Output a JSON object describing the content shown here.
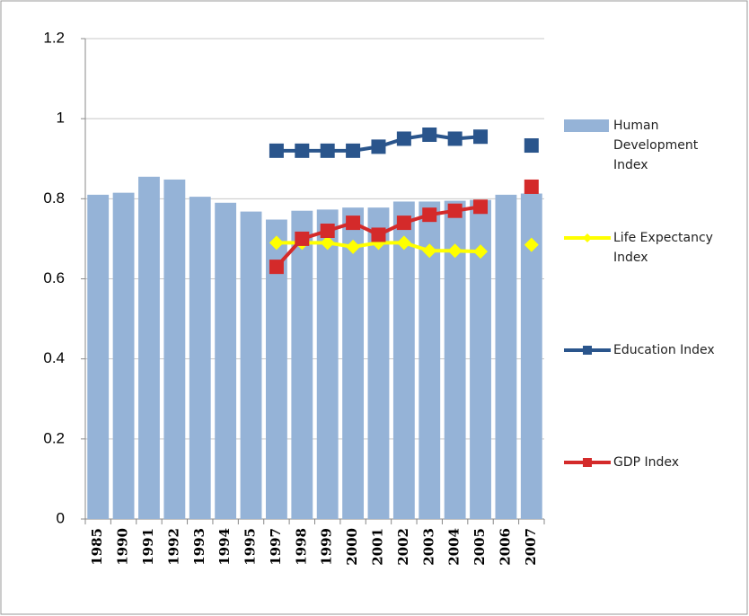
{
  "chart_data": {
    "type": "bar",
    "categories": [
      "1985",
      "1990",
      "1991",
      "1992",
      "1993",
      "1994",
      "1995",
      "1997",
      "1998",
      "1999",
      "2000",
      "2001",
      "2002",
      "2003",
      "2004",
      "2005",
      "2006",
      "2007"
    ],
    "series": [
      {
        "name": "Human Development Index",
        "type": "bar",
        "color": "#95b3d7",
        "values": [
          0.81,
          0.815,
          0.855,
          0.848,
          0.805,
          0.79,
          0.768,
          0.748,
          0.77,
          0.773,
          0.778,
          0.778,
          0.793,
          0.793,
          0.795,
          0.797,
          0.81,
          0.813
        ]
      },
      {
        "name": "Life Expectancy Index",
        "type": "line",
        "marker": "diamond",
        "color": "#ffff00",
        "values": [
          null,
          null,
          null,
          null,
          null,
          null,
          null,
          0.69,
          0.69,
          0.69,
          0.68,
          0.69,
          0.69,
          0.67,
          0.67,
          0.668,
          null,
          0.685
        ]
      },
      {
        "name": "Education Index",
        "type": "line",
        "marker": "square",
        "color": "#2a558c",
        "values": [
          null,
          null,
          null,
          null,
          null,
          null,
          null,
          0.92,
          0.92,
          0.92,
          0.92,
          0.93,
          0.95,
          0.96,
          0.95,
          0.955,
          null,
          0.933
        ]
      },
      {
        "name": "GDP Index",
        "type": "line",
        "marker": "square",
        "color": "#d42a2a",
        "values": [
          null,
          null,
          null,
          null,
          null,
          null,
          null,
          0.63,
          0.7,
          0.72,
          0.74,
          0.71,
          0.74,
          0.76,
          0.77,
          0.78,
          null,
          0.83
        ]
      }
    ],
    "ylim": [
      0,
      1.2
    ],
    "yticks": [
      0,
      {
        "value": 0.2,
        "label": "0.2"
      },
      {
        "value": 0.4,
        "label": "0.4"
      },
      {
        "value": 0.6,
        "label": "0.6"
      },
      {
        "value": 0.8,
        "label": "0.8"
      },
      1,
      {
        "value": 1.2,
        "label": "1.2"
      }
    ],
    "grid": true,
    "legend": "right"
  }
}
